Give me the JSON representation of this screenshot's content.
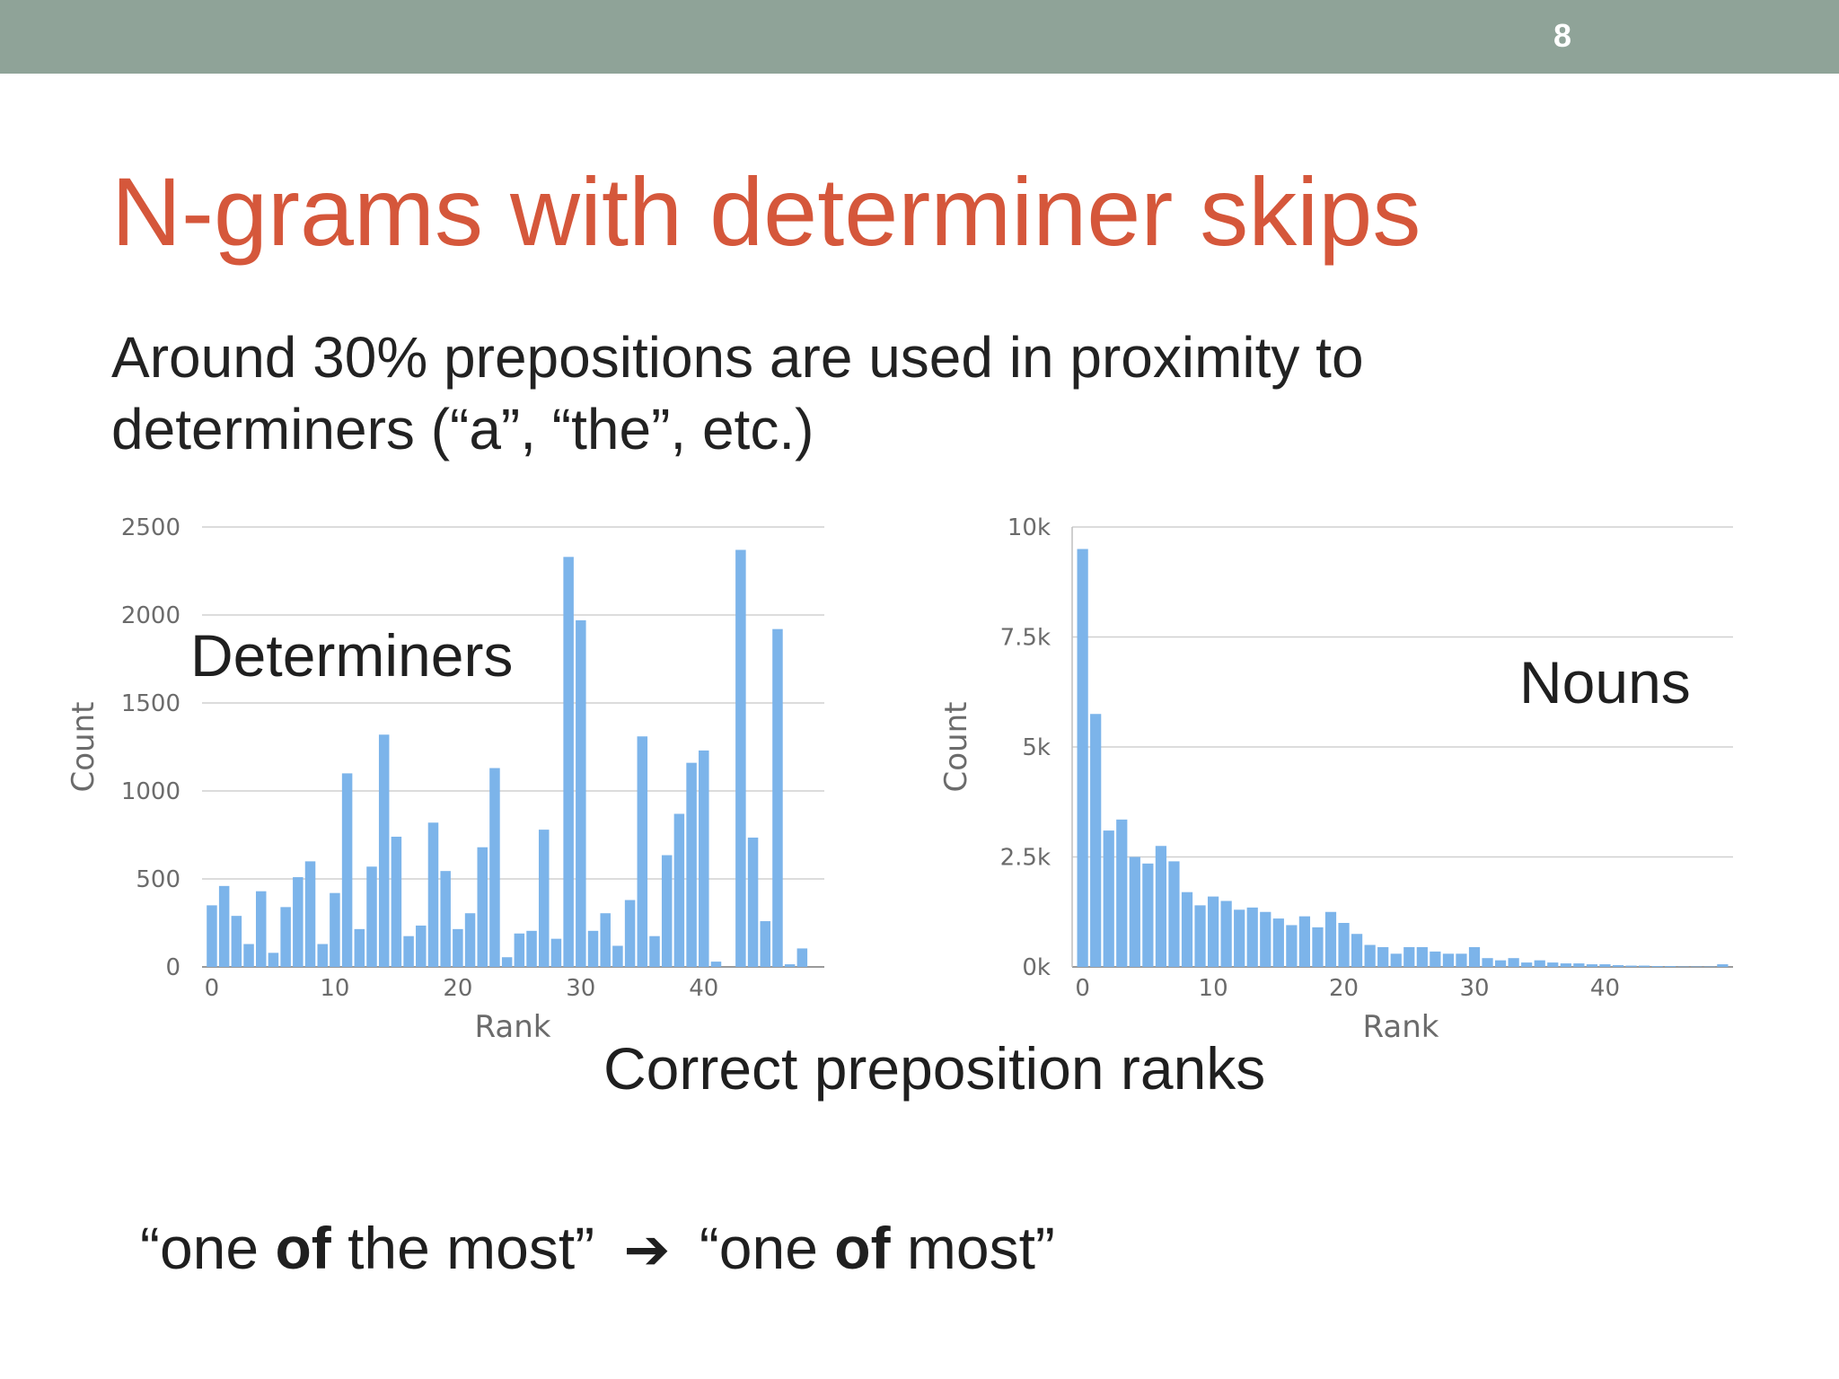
{
  "slide": {
    "number": "8",
    "title": "N-grams with determiner skips",
    "subtitle_line1": "Around 30% prepositions are used in proximity to",
    "subtitle_line2": "determiners (“a”, “the”, etc.)",
    "caption": "Correct preposition ranks",
    "example": {
      "before_open": "“one ",
      "before_bold": "of",
      "before_close": " the most”",
      "arrow_icon": "heavy-right-arrow",
      "after_open": "“one ",
      "after_bold": "of",
      "after_close": " most”"
    }
  },
  "colors": {
    "topbar": "#8fa398",
    "title": "#d5573b",
    "bar": "#7cb4ea",
    "axis_text": "#6b6b6b",
    "grid": "#d0d0d0"
  },
  "chart_data": [
    {
      "type": "bar",
      "label": "Determiners",
      "xlabel": "Rank",
      "ylabel": "Count",
      "ylim": [
        0,
        2500
      ],
      "yticks": [
        0,
        500,
        1000,
        1500,
        2000,
        2500
      ],
      "ytick_labels": [
        "0",
        "500",
        "1000",
        "1500",
        "2000",
        "2500"
      ],
      "xticks": [
        0,
        10,
        20,
        30,
        40
      ],
      "xtick_labels": [
        "0",
        "10",
        "20",
        "30",
        "40"
      ],
      "xlim": [
        -0.8,
        49.8
      ],
      "grid": true,
      "x": [
        0,
        1,
        2,
        3,
        4,
        5,
        6,
        7,
        8,
        9,
        10,
        11,
        12,
        13,
        14,
        15,
        16,
        17,
        18,
        19,
        20,
        21,
        22,
        23,
        24,
        25,
        26,
        27,
        28,
        29,
        30,
        31,
        32,
        33,
        34,
        35,
        36,
        37,
        38,
        39,
        40,
        41,
        42,
        43,
        44,
        45,
        46,
        47,
        48,
        49
      ],
      "values": [
        350,
        460,
        290,
        130,
        430,
        80,
        340,
        510,
        600,
        130,
        420,
        1100,
        215,
        570,
        1320,
        740,
        175,
        235,
        820,
        545,
        215,
        305,
        680,
        1130,
        55,
        190,
        205,
        780,
        160,
        2330,
        1970,
        205,
        305,
        120,
        380,
        1310,
        175,
        635,
        870,
        1160,
        1230,
        30,
        0,
        2370,
        735,
        260,
        1920,
        15,
        105,
        0
      ]
    },
    {
      "type": "bar",
      "label": "Nouns",
      "xlabel": "Rank",
      "ylabel": "Count",
      "ylim": [
        0,
        10000
      ],
      "yticks": [
        0,
        2500,
        5000,
        7500,
        10000
      ],
      "ytick_labels": [
        "0k",
        "2.5k",
        "5k",
        "7.5k",
        "10k"
      ],
      "xticks": [
        0,
        10,
        20,
        30,
        40
      ],
      "xtick_labels": [
        "0",
        "10",
        "20",
        "30",
        "40"
      ],
      "xlim": [
        -0.8,
        49.8
      ],
      "grid": true,
      "x": [
        0,
        1,
        2,
        3,
        4,
        5,
        6,
        7,
        8,
        9,
        10,
        11,
        12,
        13,
        14,
        15,
        16,
        17,
        18,
        19,
        20,
        21,
        22,
        23,
        24,
        25,
        26,
        27,
        28,
        29,
        30,
        31,
        32,
        33,
        34,
        35,
        36,
        37,
        38,
        39,
        40,
        41,
        42,
        43,
        44,
        45,
        46,
        47,
        48,
        49
      ],
      "values": [
        9500,
        5750,
        3100,
        3350,
        2500,
        2350,
        2750,
        2400,
        1700,
        1400,
        1600,
        1500,
        1300,
        1350,
        1250,
        1100,
        950,
        1150,
        900,
        1250,
        1000,
        750,
        500,
        450,
        300,
        450,
        450,
        350,
        300,
        300,
        450,
        200,
        150,
        200,
        100,
        150,
        100,
        80,
        80,
        60,
        60,
        40,
        30,
        30,
        20,
        20,
        10,
        10,
        10,
        60
      ]
    }
  ]
}
